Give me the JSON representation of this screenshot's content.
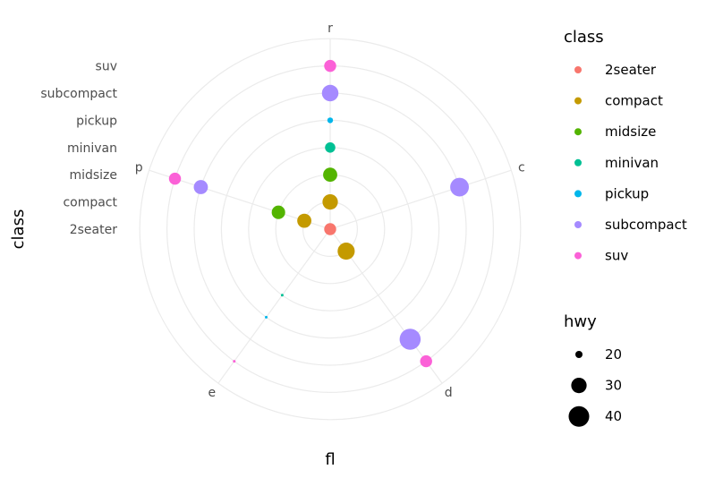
{
  "chart_data": {
    "type": "scatter",
    "coord": "polar",
    "x_label": "fl",
    "y_label": "class",
    "x_categories": [
      "c",
      "d",
      "e",
      "p",
      "r"
    ],
    "y_categories": [
      "2seater",
      "compact",
      "midsize",
      "minivan",
      "pickup",
      "subcompact",
      "suv"
    ],
    "grid": true,
    "legend_position": "right",
    "color_legend": {
      "title": "class",
      "entries": [
        {
          "label": "2seater",
          "color": "#F8766D"
        },
        {
          "label": "compact",
          "color": "#C49A00"
        },
        {
          "label": "midsize",
          "color": "#53B400"
        },
        {
          "label": "minivan",
          "color": "#00C094"
        },
        {
          "label": "pickup",
          "color": "#00B6EB"
        },
        {
          "label": "subcompact",
          "color": "#A58AFF"
        },
        {
          "label": "suv",
          "color": "#FB61D7"
        }
      ]
    },
    "size_legend": {
      "title": "hwy",
      "breaks": [
        20,
        30,
        40
      ]
    },
    "points": [
      {
        "fl": "c",
        "class": "subcompact",
        "hwy": 36
      },
      {
        "fl": "d",
        "class": "compact",
        "hwy": 33
      },
      {
        "fl": "d",
        "class": "subcompact",
        "hwy": 41
      },
      {
        "fl": "d",
        "class": "suv",
        "hwy": 25
      },
      {
        "fl": "e",
        "class": "minivan",
        "hwy": 17
      },
      {
        "fl": "e",
        "class": "pickup",
        "hwy": 12
      },
      {
        "fl": "e",
        "class": "suv",
        "hwy": 17
      },
      {
        "fl": "p",
        "class": "compact",
        "hwy": 28
      },
      {
        "fl": "p",
        "class": "midsize",
        "hwy": 27
      },
      {
        "fl": "p",
        "class": "subcompact",
        "hwy": 28
      },
      {
        "fl": "p",
        "class": "suv",
        "hwy": 25
      },
      {
        "fl": "r",
        "class": "2seater",
        "hwy": 25
      },
      {
        "fl": "r",
        "class": "compact",
        "hwy": 30
      },
      {
        "fl": "r",
        "class": "midsize",
        "hwy": 28
      },
      {
        "fl": "r",
        "class": "minivan",
        "hwy": 23
      },
      {
        "fl": "r",
        "class": "pickup",
        "hwy": 19
      },
      {
        "fl": "r",
        "class": "subcompact",
        "hwy": 32
      },
      {
        "fl": "r",
        "class": "suv",
        "hwy": 25
      }
    ]
  }
}
